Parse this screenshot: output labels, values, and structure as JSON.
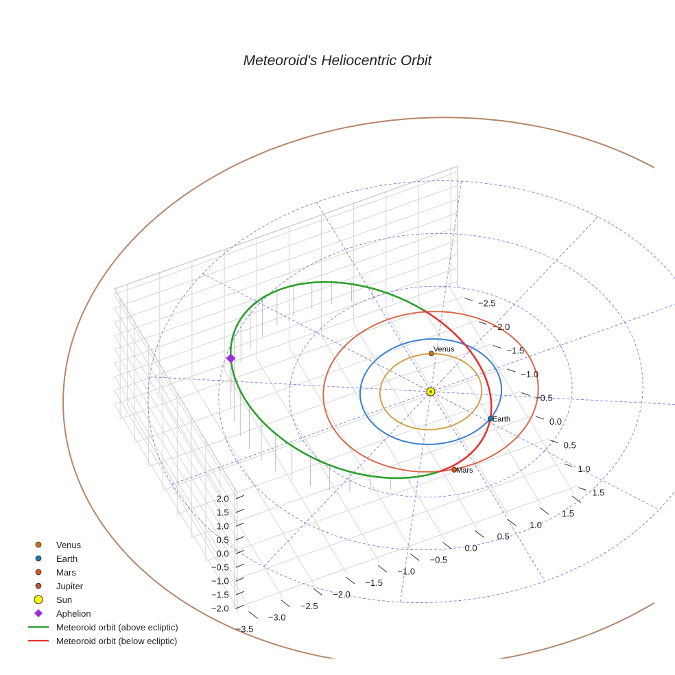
{
  "chart_data": {
    "type": "scatter",
    "projection": "3d",
    "title": "Meteoroid's Heliocentric Orbit",
    "axes": {
      "x": {
        "ticks": [
          "−3.5",
          "−3.0",
          "−2.5",
          "−2.0",
          "−1.5",
          "−1.0",
          "−0.5",
          "0.0",
          "0.5",
          "1.0",
          "1.5"
        ],
        "range": [
          -3.7,
          1.6
        ]
      },
      "y": {
        "ticks": [
          "−2.5",
          "−2.0",
          "−1.5",
          "−1.0",
          "−0.5",
          "0.0",
          "0.5",
          "1.0",
          "1.5"
        ],
        "range": [
          -2.7,
          1.6
        ]
      },
      "z": {
        "ticks": [
          "2.0",
          "1.5",
          "1.0",
          "0.5",
          "0.0",
          "−0.5",
          "−1.0",
          "−1.5",
          "−2.0"
        ],
        "range": [
          -2.2,
          2.2
        ]
      },
      "grid": true
    },
    "planets": [
      {
        "name": "Venus",
        "radius_au": 0.72,
        "marker": {
          "x": 0.3,
          "y": -0.66,
          "z": 0.0
        },
        "color": "#d4a04a",
        "marker_color": "#c8731f",
        "label": "Venus"
      },
      {
        "name": "Earth",
        "radius_au": 1.0,
        "marker": {
          "x": 0.55,
          "y": 0.84,
          "z": 0.0
        },
        "color": "#3a7fd0",
        "marker_color": "#1f77b4",
        "label": "Earth"
      },
      {
        "name": "Mars",
        "radius_au": 1.52,
        "marker": {
          "x": -0.3,
          "y": 1.5,
          "z": 0.0
        },
        "color": "#d9694a",
        "marker_color": "#d9541e",
        "label": "Mars"
      },
      {
        "name": "Jupiter",
        "radius_au": 5.2,
        "color": "#b5866a",
        "marker_color": "#b5582a"
      }
    ],
    "sun": {
      "name": "Sun",
      "x": 0,
      "y": 0,
      "z": 0,
      "color": "#ffff00"
    },
    "aphelion": {
      "name": "Aphelion",
      "x": -2.65,
      "y": -1.0,
      "z": 1.72,
      "color": "#9b30d9"
    },
    "meteoroid_orbit": {
      "above_label": "Meteoroid orbit (above ecliptic)",
      "below_label": "Meteoroid orbit (below ecliptic)",
      "above_color": "#2ca02c",
      "below_color": "#e83030"
    },
    "reference_grid": {
      "circle_radii_au": [
        1,
        2,
        3,
        4
      ],
      "color": "#6b6bdb"
    },
    "legend": {
      "position": "lower-left",
      "entries": [
        {
          "label": "Venus",
          "kind": "marker",
          "color": "#c8731f"
        },
        {
          "label": "Earth",
          "kind": "marker",
          "color": "#1f77b4"
        },
        {
          "label": "Mars",
          "kind": "marker",
          "color": "#d9541e"
        },
        {
          "label": "Jupiter",
          "kind": "marker",
          "color": "#b5582a"
        },
        {
          "label": "Sun",
          "kind": "sun",
          "color": "#ffff00"
        },
        {
          "label": "Aphelion",
          "kind": "diamond",
          "color": "#9b30d9"
        },
        {
          "label": "Meteoroid orbit (above ecliptic)",
          "kind": "line",
          "color": "#2ca02c"
        },
        {
          "label": "Meteoroid orbit (below ecliptic)",
          "kind": "line",
          "color": "#e83030"
        }
      ]
    }
  }
}
